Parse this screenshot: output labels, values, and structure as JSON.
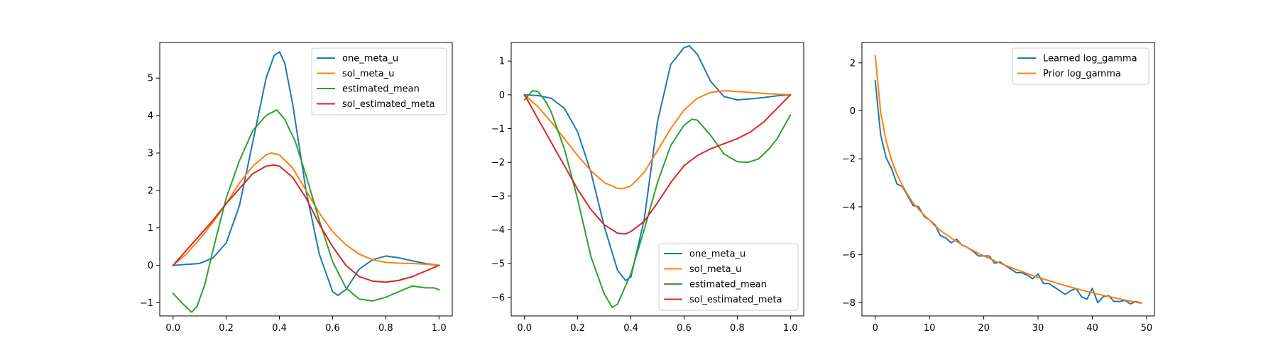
{
  "figure": {
    "background": "#ffffff"
  },
  "chart_data": [
    {
      "type": "line",
      "xlim": [
        -0.05,
        1.05
      ],
      "ylim": [
        -1.35,
        5.95
      ],
      "xticks": [
        0.0,
        0.2,
        0.4,
        0.6,
        0.8,
        1.0
      ],
      "xtick_labels": [
        "0.0",
        "0.2",
        "0.4",
        "0.6",
        "0.8",
        "1.0"
      ],
      "yticks": [
        -1,
        0,
        1,
        2,
        3,
        4,
        5
      ],
      "ytick_labels": [
        "−1",
        "0",
        "1",
        "2",
        "3",
        "4",
        "5"
      ],
      "legend": "upper right",
      "grid": false,
      "series": [
        {
          "name": "one_meta_u",
          "color": "#1f77b4",
          "x": [
            0.0,
            0.1,
            0.15,
            0.2,
            0.25,
            0.3,
            0.35,
            0.38,
            0.4,
            0.42,
            0.45,
            0.5,
            0.55,
            0.6,
            0.62,
            0.65,
            0.7,
            0.75,
            0.8,
            0.85,
            0.9,
            0.95,
            1.0
          ],
          "y": [
            0.0,
            0.05,
            0.2,
            0.6,
            1.6,
            3.3,
            5.0,
            5.6,
            5.7,
            5.4,
            4.3,
            2.0,
            0.3,
            -0.7,
            -0.8,
            -0.65,
            -0.1,
            0.15,
            0.25,
            0.2,
            0.12,
            0.05,
            0.0
          ]
        },
        {
          "name": "sol_meta_u",
          "color": "#ff7f0e",
          "x": [
            0.0,
            0.05,
            0.1,
            0.15,
            0.2,
            0.25,
            0.3,
            0.35,
            0.37,
            0.4,
            0.45,
            0.5,
            0.55,
            0.6,
            0.65,
            0.7,
            0.75,
            0.8,
            0.85,
            0.9,
            0.95,
            1.0
          ],
          "y": [
            0.0,
            0.3,
            0.7,
            1.15,
            1.65,
            2.2,
            2.65,
            2.95,
            3.0,
            2.95,
            2.6,
            2.0,
            1.4,
            0.9,
            0.55,
            0.3,
            0.15,
            0.08,
            0.06,
            0.05,
            0.03,
            0.0
          ]
        },
        {
          "name": "estimated_mean",
          "color": "#2ca02c",
          "x": [
            0.0,
            0.04,
            0.07,
            0.09,
            0.12,
            0.15,
            0.2,
            0.25,
            0.3,
            0.35,
            0.39,
            0.42,
            0.46,
            0.5,
            0.55,
            0.6,
            0.65,
            0.7,
            0.75,
            0.8,
            0.85,
            0.9,
            0.95,
            0.98,
            1.0
          ],
          "y": [
            -0.75,
            -1.05,
            -1.25,
            -1.1,
            -0.5,
            0.4,
            1.8,
            2.8,
            3.6,
            4.0,
            4.15,
            3.9,
            3.3,
            2.4,
            1.2,
            0.1,
            -0.6,
            -0.9,
            -0.95,
            -0.85,
            -0.7,
            -0.55,
            -0.6,
            -0.6,
            -0.65
          ]
        },
        {
          "name": "sol_estimated_meta",
          "color": "#d62728",
          "x": [
            0.0,
            0.05,
            0.1,
            0.15,
            0.2,
            0.25,
            0.3,
            0.35,
            0.38,
            0.4,
            0.45,
            0.5,
            0.55,
            0.6,
            0.65,
            0.7,
            0.75,
            0.8,
            0.85,
            0.9,
            0.95,
            1.0
          ],
          "y": [
            0.0,
            0.4,
            0.8,
            1.2,
            1.65,
            2.05,
            2.45,
            2.65,
            2.68,
            2.65,
            2.35,
            1.8,
            1.1,
            0.5,
            0.0,
            -0.3,
            -0.42,
            -0.45,
            -0.4,
            -0.3,
            -0.15,
            0.0
          ]
        }
      ]
    },
    {
      "type": "line",
      "xlim": [
        -0.05,
        1.05
      ],
      "ylim": [
        -6.55,
        1.55
      ],
      "xticks": [
        0.0,
        0.2,
        0.4,
        0.6,
        0.8,
        1.0
      ],
      "xtick_labels": [
        "0.0",
        "0.2",
        "0.4",
        "0.6",
        "0.8",
        "1.0"
      ],
      "yticks": [
        -6,
        -5,
        -4,
        -3,
        -2,
        -1,
        0,
        1
      ],
      "ytick_labels": [
        "−6",
        "−5",
        "−4",
        "−3",
        "−2",
        "−1",
        "0",
        "1"
      ],
      "legend": "lower right",
      "grid": false,
      "series": [
        {
          "name": "one_meta_u",
          "color": "#1f77b4",
          "x": [
            0.0,
            0.05,
            0.1,
            0.15,
            0.2,
            0.25,
            0.3,
            0.35,
            0.38,
            0.4,
            0.45,
            0.5,
            0.55,
            0.6,
            0.62,
            0.65,
            0.7,
            0.75,
            0.8,
            0.85,
            0.9,
            0.95,
            1.0
          ],
          "y": [
            0.0,
            -0.02,
            -0.1,
            -0.4,
            -1.1,
            -2.3,
            -3.9,
            -5.2,
            -5.5,
            -5.4,
            -3.7,
            -0.8,
            0.9,
            1.4,
            1.45,
            1.2,
            0.4,
            -0.05,
            -0.15,
            -0.12,
            -0.08,
            -0.03,
            0.0
          ]
        },
        {
          "name": "sol_meta_u",
          "color": "#ff7f0e",
          "x": [
            0.0,
            0.05,
            0.1,
            0.15,
            0.2,
            0.25,
            0.3,
            0.35,
            0.37,
            0.4,
            0.45,
            0.5,
            0.55,
            0.6,
            0.65,
            0.7,
            0.75,
            0.8,
            0.85,
            0.9,
            0.95,
            1.0
          ],
          "y": [
            0.0,
            -0.35,
            -0.8,
            -1.3,
            -1.8,
            -2.25,
            -2.6,
            -2.77,
            -2.78,
            -2.7,
            -2.3,
            -1.65,
            -1.0,
            -0.45,
            -0.1,
            0.07,
            0.12,
            0.1,
            0.07,
            0.04,
            0.02,
            0.0
          ]
        },
        {
          "name": "estimated_mean",
          "color": "#2ca02c",
          "x": [
            0.0,
            0.03,
            0.05,
            0.08,
            0.1,
            0.15,
            0.2,
            0.25,
            0.3,
            0.33,
            0.35,
            0.4,
            0.45,
            0.5,
            0.55,
            0.6,
            0.63,
            0.65,
            0.7,
            0.75,
            0.8,
            0.84,
            0.88,
            0.92,
            0.95,
            1.0
          ],
          "y": [
            -0.15,
            0.12,
            0.1,
            -0.2,
            -0.5,
            -1.6,
            -3.1,
            -4.8,
            -5.9,
            -6.3,
            -6.2,
            -5.3,
            -4.0,
            -2.6,
            -1.5,
            -0.9,
            -0.72,
            -0.75,
            -1.2,
            -1.75,
            -1.98,
            -2.0,
            -1.9,
            -1.6,
            -1.3,
            -0.6
          ]
        },
        {
          "name": "sol_estimated_meta",
          "color": "#d62728",
          "x": [
            0.0,
            0.05,
            0.1,
            0.15,
            0.2,
            0.25,
            0.3,
            0.35,
            0.38,
            0.4,
            0.45,
            0.5,
            0.55,
            0.6,
            0.65,
            0.7,
            0.75,
            0.8,
            0.85,
            0.9,
            0.95,
            1.0
          ],
          "y": [
            0.0,
            -0.7,
            -1.4,
            -2.1,
            -2.8,
            -3.4,
            -3.85,
            -4.1,
            -4.12,
            -4.05,
            -3.75,
            -3.2,
            -2.6,
            -2.1,
            -1.8,
            -1.6,
            -1.45,
            -1.3,
            -1.1,
            -0.8,
            -0.4,
            0.0
          ]
        }
      ]
    },
    {
      "type": "line",
      "xlim": [
        -2.45,
        51.45
      ],
      "ylim": [
        -8.55,
        2.85
      ],
      "xticks": [
        0,
        10,
        20,
        30,
        40,
        50
      ],
      "xtick_labels": [
        "0",
        "10",
        "20",
        "30",
        "40",
        "50"
      ],
      "yticks": [
        -8,
        -6,
        -4,
        -2,
        0,
        2
      ],
      "ytick_labels": [
        "−8",
        "−6",
        "−4",
        "−2",
        "0",
        "2"
      ],
      "legend": "upper right",
      "grid": false,
      "series": [
        {
          "name": "Learned log_gamma",
          "color": "#1f77b4",
          "x": [
            0,
            1,
            2,
            3,
            4,
            5,
            6,
            7,
            8,
            9,
            10,
            11,
            12,
            13,
            14,
            15,
            16,
            17,
            18,
            19,
            20,
            21,
            22,
            23,
            24,
            25,
            26,
            27,
            28,
            29,
            30,
            31,
            32,
            33,
            34,
            35,
            36,
            37,
            38,
            39,
            40,
            41,
            42,
            43,
            44,
            45,
            46,
            47,
            48,
            49
          ],
          "y": [
            1.25,
            -1.0,
            -1.95,
            -2.4,
            -3.05,
            -3.15,
            -3.55,
            -3.95,
            -4.0,
            -4.4,
            -4.55,
            -4.75,
            -5.2,
            -5.3,
            -5.5,
            -5.35,
            -5.6,
            -5.7,
            -5.85,
            -6.05,
            -6.05,
            -6.05,
            -6.35,
            -6.3,
            -6.45,
            -6.6,
            -6.75,
            -6.75,
            -6.85,
            -7.0,
            -6.8,
            -7.2,
            -7.2,
            -7.35,
            -7.5,
            -7.65,
            -7.5,
            -7.4,
            -7.75,
            -7.85,
            -7.4,
            -8.0,
            -7.75,
            -7.7,
            -7.95,
            -7.95,
            -7.9,
            -8.05,
            -7.95,
            -8.0
          ]
        },
        {
          "name": "Prior log_gamma",
          "color": "#ff7f0e",
          "x": [
            0,
            1,
            2,
            3,
            4,
            5,
            6,
            7,
            8,
            9,
            10,
            11,
            12,
            13,
            14,
            15,
            16,
            17,
            18,
            19,
            20,
            21,
            22,
            23,
            24,
            25,
            26,
            27,
            28,
            29,
            30,
            31,
            32,
            33,
            34,
            35,
            36,
            37,
            38,
            39,
            40,
            41,
            42,
            43,
            44,
            45,
            46,
            47,
            48,
            49
          ],
          "y": [
            2.3,
            -0.05,
            -1.25,
            -2.05,
            -2.65,
            -3.1,
            -3.5,
            -3.85,
            -4.1,
            -4.35,
            -4.55,
            -4.8,
            -4.98,
            -5.15,
            -5.3,
            -5.45,
            -5.58,
            -5.7,
            -5.82,
            -5.94,
            -6.05,
            -6.15,
            -6.25,
            -6.35,
            -6.44,
            -6.53,
            -6.62,
            -6.7,
            -6.78,
            -6.86,
            -6.94,
            -7.01,
            -7.08,
            -7.15,
            -7.22,
            -7.28,
            -7.35,
            -7.41,
            -7.47,
            -7.53,
            -7.58,
            -7.64,
            -7.69,
            -7.74,
            -7.79,
            -7.84,
            -7.89,
            -7.93,
            -7.98,
            -8.02
          ]
        }
      ]
    }
  ]
}
